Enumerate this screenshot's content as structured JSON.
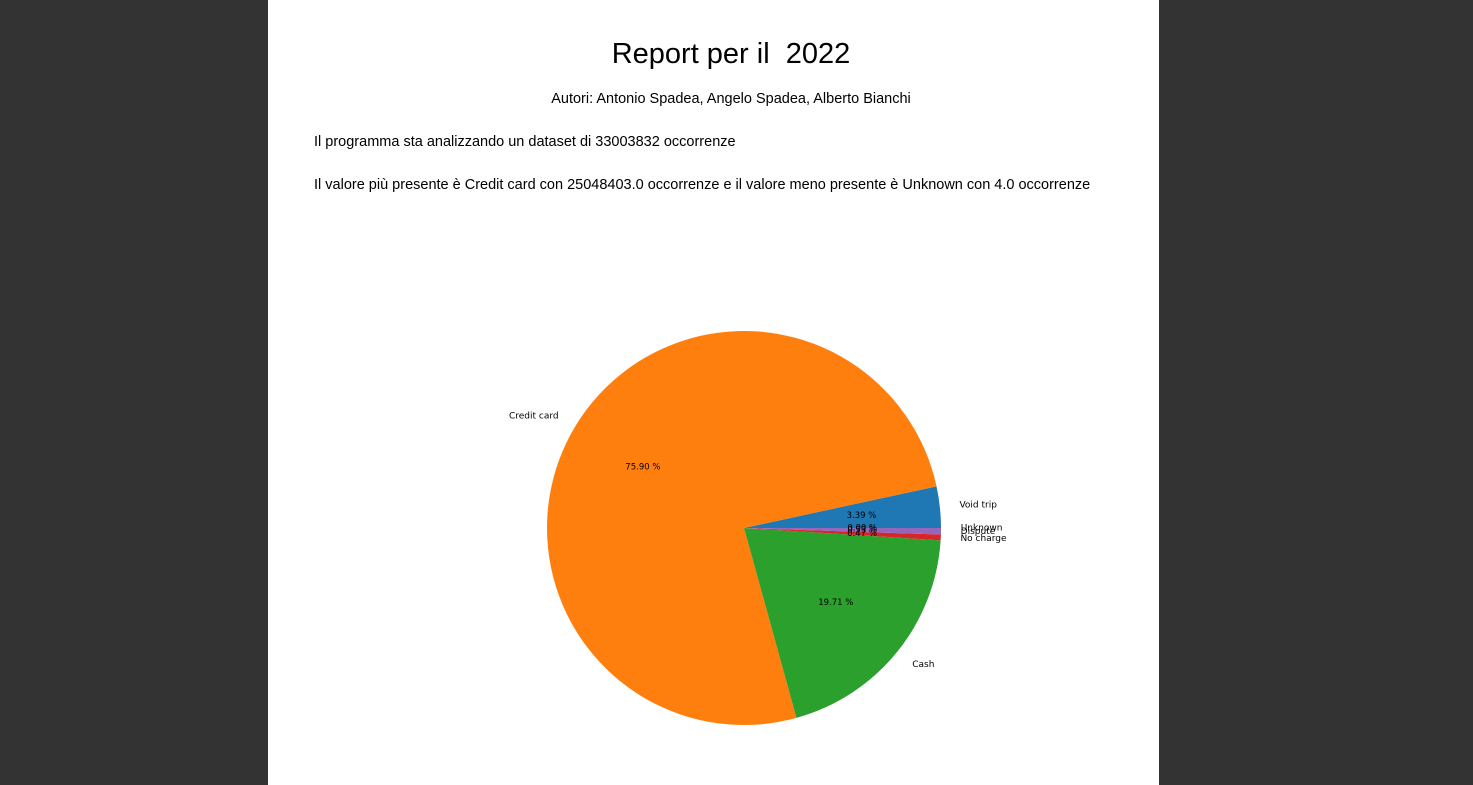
{
  "document": {
    "title": "Report per il  2022",
    "authors": "Autori: Antonio Spadea, Angelo Spadea, Alberto Bianchi",
    "paragraph_1": "Il programma sta analizzando un dataset di 33003832 occorrenze",
    "paragraph_2": "Il valore più presente è Credit card con 25048403.0 occorrenze e il valore meno presente è Unknown con 4.0 occorrenze"
  },
  "chart_data": {
    "type": "pie",
    "start_angle_deg": 0,
    "direction": "counterclockwise",
    "slices": [
      {
        "name": "Void trip",
        "value": 3.39,
        "label": "3.39 %",
        "color": "#1f77b4"
      },
      {
        "name": "Credit card",
        "value": 75.9,
        "label": "75.90 %",
        "color": "#ff7f0e"
      },
      {
        "name": "Cash",
        "value": 19.71,
        "label": "19.71 %",
        "color": "#2ca02c"
      },
      {
        "name": "No charge",
        "value": 0.47,
        "label": "0.47 %",
        "color": "#d62728"
      },
      {
        "name": "Dispute",
        "value": 0.53,
        "label": "0.53 %",
        "color": "#9467bd"
      },
      {
        "name": "Unknown",
        "value": 0.0,
        "label": "0.00 %",
        "color": "#8c564b"
      }
    ]
  }
}
